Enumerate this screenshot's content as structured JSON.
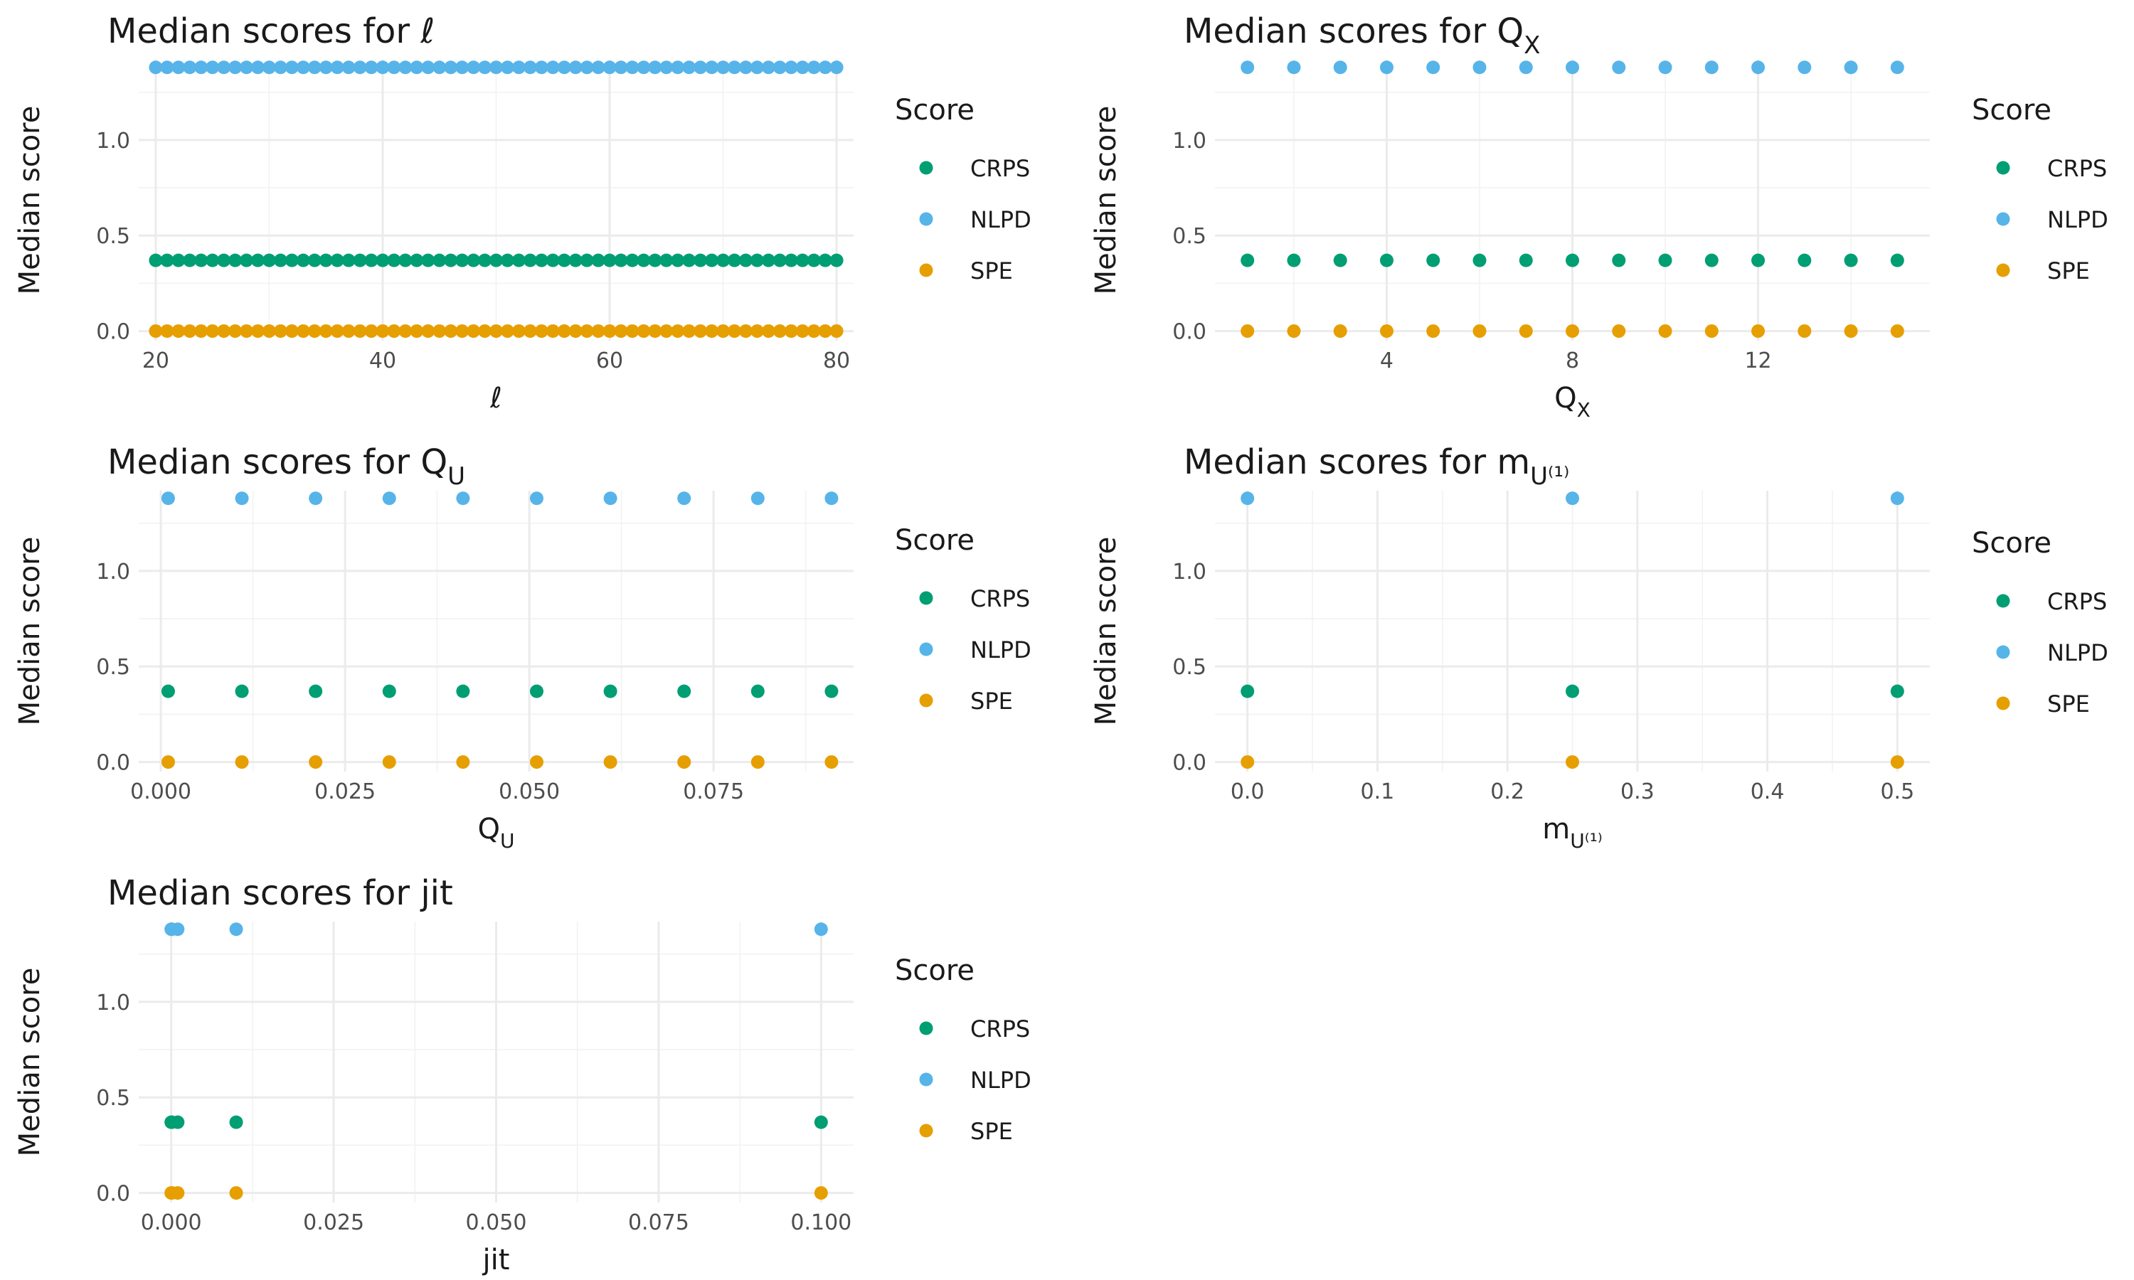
{
  "colors": {
    "CRPS": "#009E73",
    "NLPD": "#56B4E9",
    "SPE": "#E69F00"
  },
  "chart_data": [
    {
      "id": "ell",
      "type": "scatter",
      "title": "Median scores for ℓ",
      "xlabel": "ℓ",
      "ylabel": "Median score",
      "xlim": [
        18.5,
        81.5
      ],
      "ylim": [
        -0.05,
        1.42
      ],
      "xticks": [
        20,
        40,
        60,
        80
      ],
      "xtick_labels": [
        "20",
        "40",
        "60",
        "80"
      ],
      "yticks": [
        0,
        0.5,
        1
      ],
      "ytick_labels": [
        "0.0",
        "0.5",
        "1.0"
      ],
      "legend_title": "Score",
      "legend_position": "right",
      "x": [
        20,
        21,
        22,
        23,
        24,
        25,
        26,
        27,
        28,
        29,
        30,
        31,
        32,
        33,
        34,
        35,
        36,
        37,
        38,
        39,
        40,
        41,
        42,
        43,
        44,
        45,
        46,
        47,
        48,
        49,
        50,
        51,
        52,
        53,
        54,
        55,
        56,
        57,
        58,
        59,
        60,
        61,
        62,
        63,
        64,
        65,
        66,
        67,
        68,
        69,
        70,
        71,
        72,
        73,
        74,
        75,
        76,
        77,
        78,
        79,
        80
      ],
      "series": [
        {
          "name": "CRPS",
          "value": 0.37
        },
        {
          "name": "NLPD",
          "value": 1.38
        },
        {
          "name": "SPE",
          "value": 0.0
        }
      ]
    },
    {
      "id": "qx",
      "type": "scatter",
      "title": "Median scores for Q",
      "title_sub": "X",
      "xlabel": "Q",
      "xlabel_sub": "X",
      "ylabel": "Median score",
      "xlim": [
        0.3,
        15.7
      ],
      "ylim": [
        -0.05,
        1.42
      ],
      "xticks": [
        4,
        8,
        12
      ],
      "xtick_labels": [
        "4",
        "8",
        "12"
      ],
      "yticks": [
        0,
        0.5,
        1
      ],
      "ytick_labels": [
        "0.0",
        "0.5",
        "1.0"
      ],
      "legend_title": "Score",
      "legend_position": "right",
      "x": [
        1,
        2,
        3,
        4,
        5,
        6,
        7,
        8,
        9,
        10,
        11,
        12,
        13,
        14,
        15
      ],
      "series": [
        {
          "name": "CRPS",
          "value": 0.37
        },
        {
          "name": "NLPD",
          "value": 1.38
        },
        {
          "name": "SPE",
          "value": 0.0
        }
      ]
    },
    {
      "id": "qu",
      "type": "scatter",
      "title": "Median scores for Q",
      "title_sub": "U",
      "xlabel": "Q",
      "xlabel_sub": "U",
      "ylabel": "Median score",
      "xlim": [
        -0.003,
        0.094
      ],
      "ylim": [
        -0.05,
        1.42
      ],
      "xticks": [
        0,
        0.025,
        0.05,
        0.075
      ],
      "xtick_labels": [
        "0.000",
        "0.025",
        "0.050",
        "0.075"
      ],
      "yticks": [
        0,
        0.5,
        1
      ],
      "ytick_labels": [
        "0.0",
        "0.5",
        "1.0"
      ],
      "legend_title": "Score",
      "legend_position": "right",
      "x": [
        0.001,
        0.011,
        0.021,
        0.031,
        0.041,
        0.051,
        0.061,
        0.071,
        0.081,
        0.091
      ],
      "series": [
        {
          "name": "CRPS",
          "value": 0.37
        },
        {
          "name": "NLPD",
          "value": 1.38
        },
        {
          "name": "SPE",
          "value": 0.0
        }
      ]
    },
    {
      "id": "mu",
      "type": "scatter",
      "title": "Median scores for m",
      "title_sub": "U⁽¹⁾",
      "xlabel": "m",
      "xlabel_sub": "U⁽¹⁾",
      "ylabel": "Median score",
      "xlim": [
        -0.025,
        0.525
      ],
      "ylim": [
        -0.05,
        1.42
      ],
      "xticks": [
        0,
        0.1,
        0.2,
        0.3,
        0.4,
        0.5
      ],
      "xtick_labels": [
        "0.0",
        "0.1",
        "0.2",
        "0.3",
        "0.4",
        "0.5"
      ],
      "yticks": [
        0,
        0.5,
        1
      ],
      "ytick_labels": [
        "0.0",
        "0.5",
        "1.0"
      ],
      "legend_title": "Score",
      "legend_position": "right",
      "x": [
        0,
        0.25,
        0.5
      ],
      "series": [
        {
          "name": "CRPS",
          "value": 0.37
        },
        {
          "name": "NLPD",
          "value": 1.38
        },
        {
          "name": "SPE",
          "value": 0.0
        }
      ]
    },
    {
      "id": "jit",
      "type": "scatter",
      "title": "Median scores for jit",
      "xlabel": "jit",
      "ylabel": "Median score",
      "xlim": [
        -0.005,
        0.105
      ],
      "ylim": [
        -0.05,
        1.42
      ],
      "xticks": [
        0,
        0.025,
        0.05,
        0.075,
        0.1
      ],
      "xtick_labels": [
        "0.000",
        "0.025",
        "0.050",
        "0.075",
        "0.100"
      ],
      "yticks": [
        0,
        0.5,
        1
      ],
      "ytick_labels": [
        "0.0",
        "0.5",
        "1.0"
      ],
      "legend_title": "Score",
      "legend_position": "right",
      "x": [
        0,
        0.0001,
        0.001,
        0.01,
        0.1
      ],
      "series": [
        {
          "name": "CRPS",
          "value": 0.37
        },
        {
          "name": "NLPD",
          "value": 1.38
        },
        {
          "name": "SPE",
          "value": 0.0
        }
      ]
    }
  ]
}
